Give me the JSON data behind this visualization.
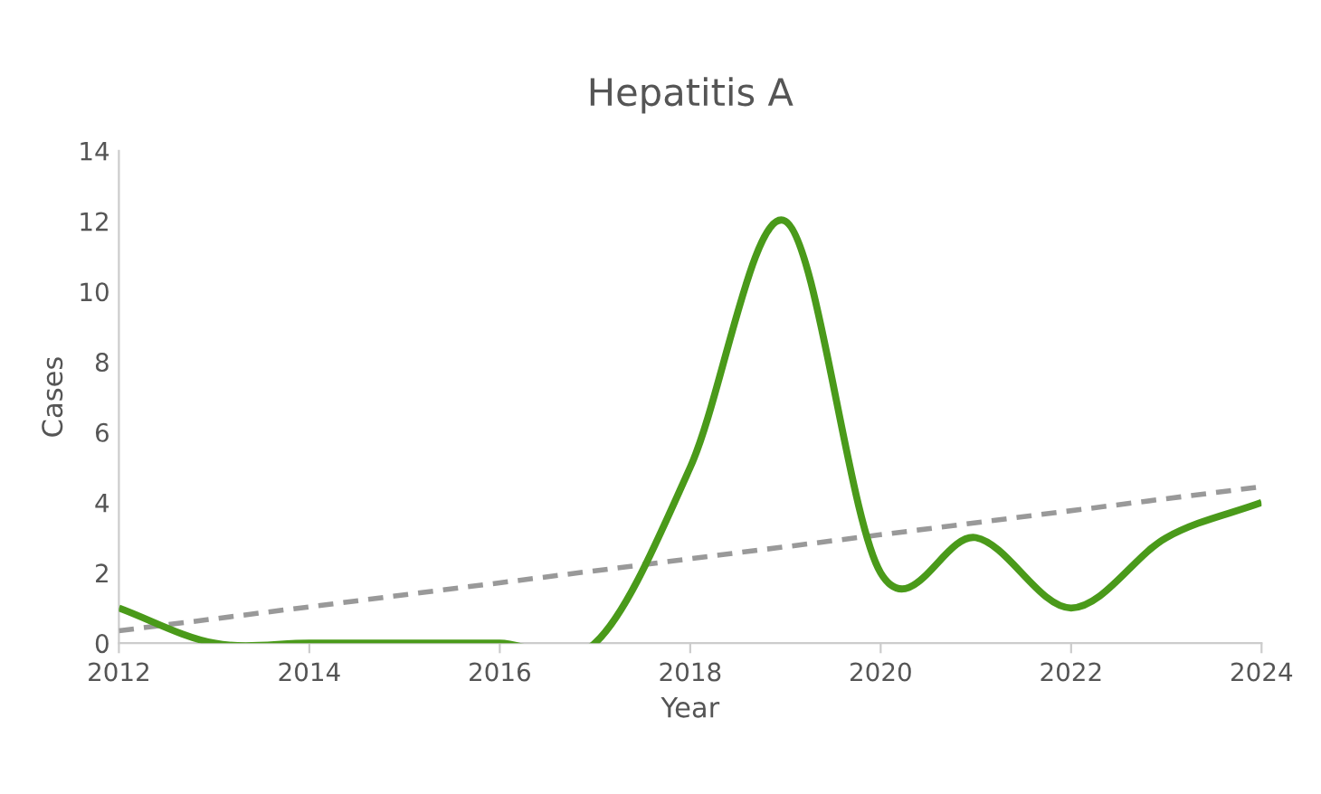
{
  "chart_data": {
    "type": "line",
    "title": "Hepatitis A",
    "xlabel": "Year",
    "ylabel": "Cases",
    "xlim": [
      2012,
      2024
    ],
    "xticks": [
      2012,
      2014,
      2016,
      2018,
      2020,
      2022,
      2024
    ],
    "ylim": [
      0,
      14
    ],
    "yticks": [
      0,
      2,
      4,
      6,
      8,
      10,
      12,
      14
    ],
    "grid": false,
    "legend": false,
    "series": [
      {
        "color": "#4a9a1a",
        "line_style": "solid",
        "x": [
          2012,
          2013,
          2014,
          2015,
          2016,
          2017,
          2018,
          2019,
          2020,
          2021,
          2022,
          2023,
          2024
        ],
        "values": [
          1,
          0,
          0,
          0,
          0,
          0,
          5,
          12,
          2,
          3,
          1,
          3,
          4
        ]
      },
      {
        "color": "#999999",
        "line_style": "dashed",
        "x": [
          2012,
          2024
        ],
        "values": [
          0.35,
          4.45
        ]
      }
    ]
  }
}
